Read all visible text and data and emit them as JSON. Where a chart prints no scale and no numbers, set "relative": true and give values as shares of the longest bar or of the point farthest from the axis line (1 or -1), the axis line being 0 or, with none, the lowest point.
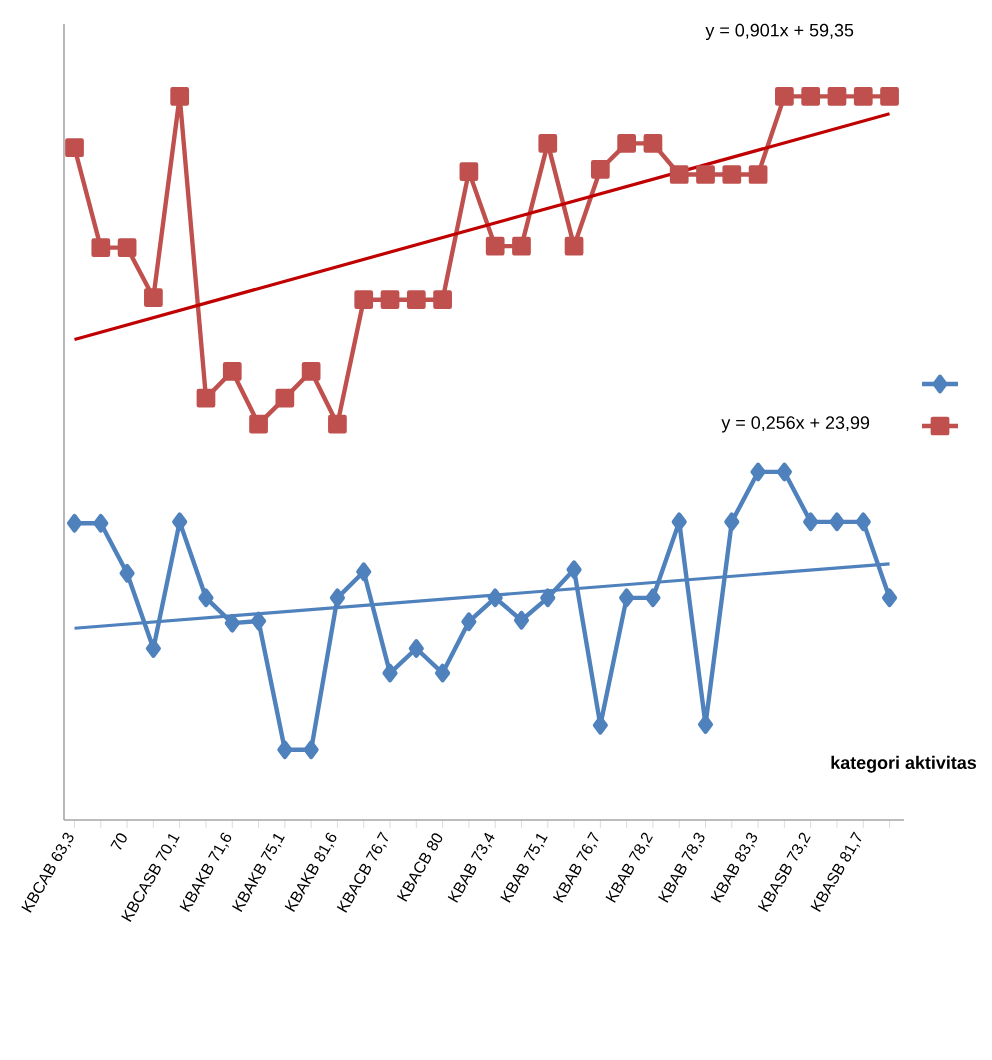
{
  "chart_data": {
    "type": "line",
    "relative": true,
    "xlabel": "kategori aktivitas",
    "categories": [
      "KBCAB 63,3",
      null,
      "70",
      null,
      "KBCASB 70,1",
      null,
      "KBAKB 71,6",
      null,
      "KBAKB 75,1",
      null,
      "KBAKB 81,6",
      null,
      "KBACB 76,7",
      null,
      "KBACB 80",
      null,
      "KBAB 73,4",
      null,
      "KBAB 75,1",
      null,
      "KBAB 76,7",
      null,
      "KBAB 78,2",
      null,
      "KBAB 78,3",
      null,
      "KBAB 83,3",
      null,
      "KBASB 73,2",
      null,
      "KBASB 81,7",
      null
    ],
    "series": [
      {
        "color": "#4f81bd",
        "marker": "diamond",
        "values": [
          0.41,
          0.41,
          0.341,
          0.237,
          0.412,
          0.307,
          0.272,
          0.275,
          0.097,
          0.097,
          0.307,
          0.343,
          0.203,
          0.237,
          0.203,
          0.274,
          0.307,
          0.276,
          0.307,
          0.346,
          0.131,
          0.307,
          0.307,
          0.412,
          0.132,
          0.412,
          0.481,
          0.481,
          0.412,
          0.412,
          0.412,
          0.307
        ]
      },
      {
        "color": "#c0504d",
        "marker": "square",
        "values": [
          0.929,
          0.791,
          0.791,
          0.722,
          1,
          0.583,
          0.62,
          0.547,
          0.583,
          0.62,
          0.547,
          0.719,
          0.719,
          0.719,
          0.719,
          0.896,
          0.793,
          0.793,
          0.935,
          0.793,
          0.899,
          0.935,
          0.935,
          0.892,
          0.892,
          0.892,
          0.892,
          1,
          1,
          1,
          1,
          1
        ]
      },
      {
        "type": "line",
        "color": "#4f81bd",
        "marker": "none",
        "values": [
          0.265,
          null,
          null,
          null,
          null,
          null,
          null,
          null,
          null,
          null,
          null,
          null,
          null,
          null,
          null,
          null,
          null,
          null,
          null,
          null,
          null,
          null,
          null,
          null,
          null,
          null,
          null,
          null,
          null,
          null,
          null,
          0.354
        ]
      },
      {
        "type": "line",
        "color": "#c00000",
        "marker": "none",
        "values": [
          0.664,
          null,
          null,
          null,
          null,
          null,
          null,
          null,
          null,
          null,
          null,
          null,
          null,
          null,
          null,
          null,
          null,
          null,
          null,
          null,
          null,
          null,
          null,
          null,
          null,
          null,
          null,
          null,
          null,
          null,
          null,
          0.976
        ]
      }
    ],
    "annotations": [
      "y = 0,901x + 59,35",
      "y = 0,256x + 23,99"
    ]
  }
}
